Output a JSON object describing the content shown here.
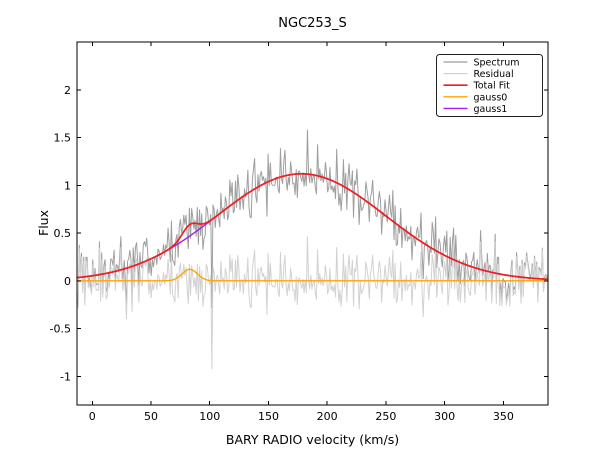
{
  "window": {
    "background": "#FFFFFF",
    "frame_color": "#000000"
  },
  "chart_data": {
    "type": "line",
    "title": "NGC253_S",
    "xlabel": "BARY RADIO velocity (km/s)",
    "ylabel": "Flux",
    "xlim": [
      -13,
      388
    ],
    "ylim": [
      -1.3,
      2.5
    ],
    "grid": false,
    "xticks": {
      "values": [
        0,
        50,
        100,
        150,
        200,
        250,
        300,
        350
      ],
      "labels": [
        "0",
        "50",
        "100",
        "150",
        "200",
        "250",
        "300",
        "350"
      ]
    },
    "yticks": {
      "values": [
        2,
        1.5,
        1,
        0.5,
        0,
        -0.5,
        -1
      ],
      "labels": [
        "2",
        "1.5",
        "1",
        "0.5",
        "0",
        "-0.5",
        "-1"
      ]
    },
    "legend": {
      "position": "upper right",
      "entries": [
        {
          "label": "Spectrum",
          "color": "#9E9E9E",
          "width": 1.0
        },
        {
          "label": "Residual",
          "color": "#D2D2D2",
          "width": 1.0
        },
        {
          "label": "Total Fit",
          "color": "#F01E1E",
          "width": 1.7
        },
        {
          "label": "gauss0",
          "color": "#FFA500",
          "width": 1.4
        },
        {
          "label": "gauss1",
          "color": "#A020F0",
          "width": 1.4
        }
      ]
    },
    "fit_components": {
      "gauss0": {
        "amplitude": 0.12,
        "center": 83,
        "sigma": 6.5
      },
      "gauss1": {
        "amplitude": 1.12,
        "center": 178,
        "sigma": 72
      },
      "total_fit_peak": {
        "velocity": 178,
        "flux": 1.12
      },
      "total_fit_rule": "gauss0 + gauss1"
    },
    "spectrum_noise": {
      "std": 0.16,
      "seed": 42,
      "n_points": 420,
      "outlier": {
        "velocity": 102,
        "flux": -0.92
      },
      "rule_spectrum": "total_fit + noise",
      "rule_residual": "noise"
    },
    "series_draw_order": [
      "Spectrum",
      "Residual",
      "gauss0",
      "gauss1",
      "Total Fit"
    ]
  }
}
